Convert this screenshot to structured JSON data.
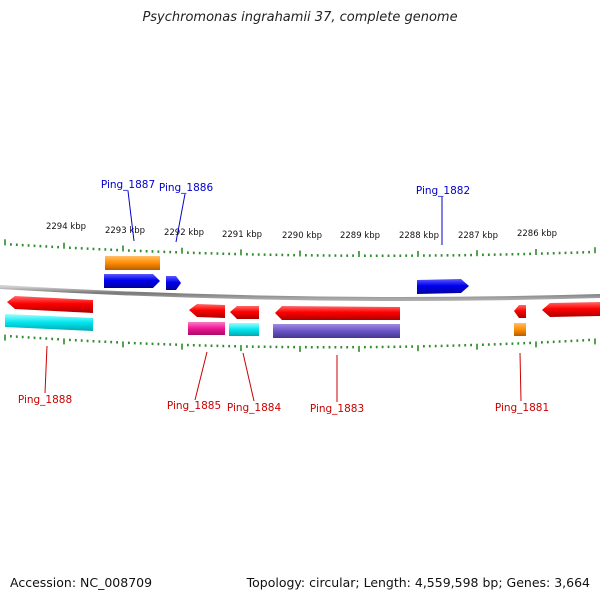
{
  "title": "Psychromonas ingrahamii 37, complete genome",
  "footer": {
    "accession": "Accession: NC_008709",
    "summary": "Topology: circular; Length: 4,559,598 bp; Genes: 3,664"
  },
  "scale_labels": [
    "2294 kbp",
    "2293 kbp",
    "2292 kbp",
    "2291 kbp",
    "2290 kbp",
    "2289 kbp",
    "2288 kbp",
    "2287 kbp",
    "2286 kbp"
  ],
  "colors": {
    "forward_label": "#0000cc",
    "reverse_label": "#cc0000",
    "backbone": "#888888",
    "ticks": "#2e8b2e"
  },
  "gene_labels": [
    {
      "text": "Ping_1887",
      "strand": "forward"
    },
    {
      "text": "Ping_1886",
      "strand": "forward"
    },
    {
      "text": "Ping_1882",
      "strand": "forward"
    },
    {
      "text": "Ping_1888",
      "strand": "reverse"
    },
    {
      "text": "Ping_1885",
      "strand": "reverse"
    },
    {
      "text": "Ping_1884",
      "strand": "reverse"
    },
    {
      "text": "Ping_1883",
      "strand": "reverse"
    },
    {
      "text": "Ping_1881",
      "strand": "reverse"
    }
  ]
}
